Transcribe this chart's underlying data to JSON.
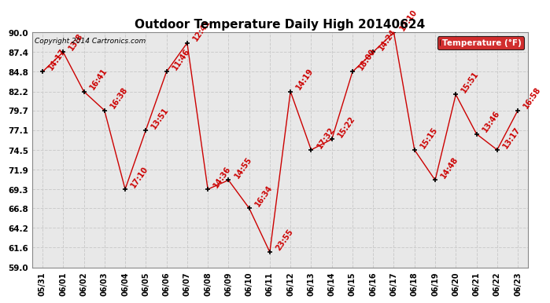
{
  "title": "Outdoor Temperature Daily High 20140624",
  "copyright": "Copyright 2014 Cartronics.com",
  "legend_label": "Temperature (°F)",
  "x_labels": [
    "05/31",
    "06/01",
    "06/02",
    "06/03",
    "06/04",
    "06/05",
    "06/06",
    "06/07",
    "06/08",
    "06/09",
    "06/10",
    "06/11",
    "06/12",
    "06/13",
    "06/14",
    "06/15",
    "06/16",
    "06/17",
    "06/18",
    "06/19",
    "06/20",
    "06/21",
    "06/22",
    "06/23"
  ],
  "y_values": [
    84.8,
    87.4,
    82.2,
    79.7,
    69.3,
    77.1,
    84.8,
    88.6,
    69.3,
    70.5,
    66.8,
    61.0,
    82.2,
    74.5,
    75.9,
    84.8,
    87.4,
    90.0,
    74.5,
    70.5,
    81.8,
    76.6,
    74.5,
    79.7
  ],
  "annotations": [
    "14:17",
    "13:8",
    "16:41",
    "16:38",
    "17:10",
    "13:51",
    "11:46",
    "12:41",
    "14:36",
    "14:55",
    "16:34",
    "23:55",
    "14:19",
    "17:32",
    "15:22",
    "18:00",
    "14:24",
    "17:10",
    "15:15",
    "14:48",
    "15:51",
    "13:46",
    "13:17",
    "16:58"
  ],
  "y_ticks": [
    59.0,
    61.6,
    64.2,
    66.8,
    69.3,
    71.9,
    74.5,
    77.1,
    79.7,
    82.2,
    84.8,
    87.4,
    90.0
  ],
  "line_color": "#cc0000",
  "marker_color": "#000000",
  "grid_color": "#cccccc",
  "bg_color": "#ffffff",
  "plot_bg_color": "#e8e8e8",
  "title_fontsize": 11,
  "annotation_fontsize": 7.0,
  "annotation_rotation": 55
}
